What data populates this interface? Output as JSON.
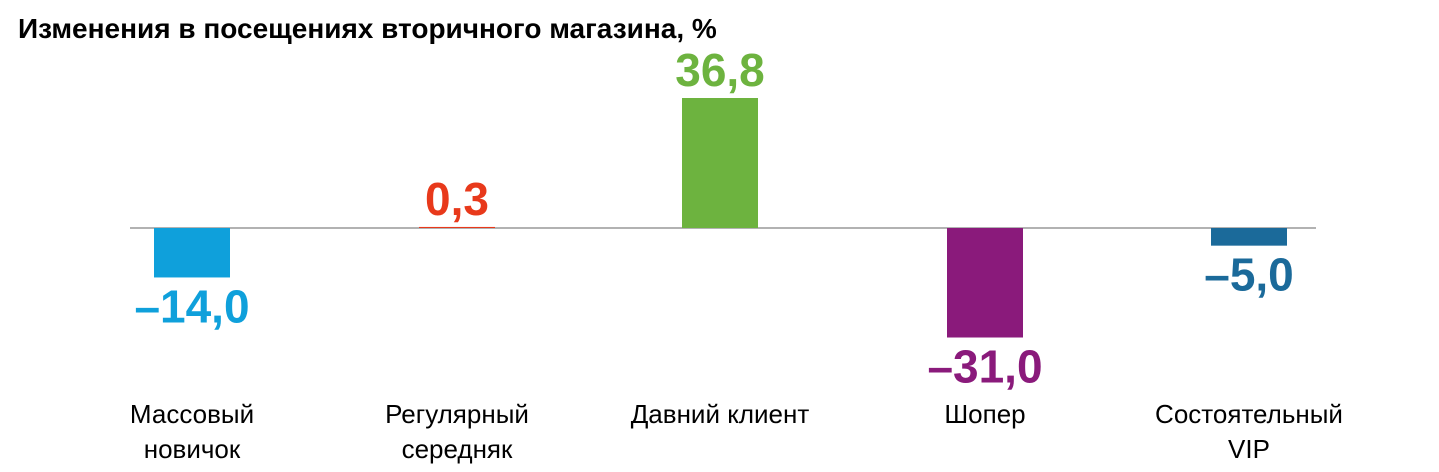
{
  "chart_data": {
    "type": "bar",
    "title": "Изменения в посещениях вторичного магазина, %",
    "categories": [
      "Массовый\nновичок",
      "Регулярный\nсередняк",
      "Давний клиент",
      "Шопер",
      "Состоятельный\nVIP"
    ],
    "values": [
      -14.0,
      0.3,
      36.8,
      -31.0,
      -5.0
    ],
    "value_labels": [
      "–14,0",
      "0,3",
      "36,8",
      "–31,0",
      "–5,0"
    ],
    "colors": [
      "#0fa0db",
      "#e8391b",
      "#6db33f",
      "#8a1a7b",
      "#1b6a9a"
    ]
  }
}
